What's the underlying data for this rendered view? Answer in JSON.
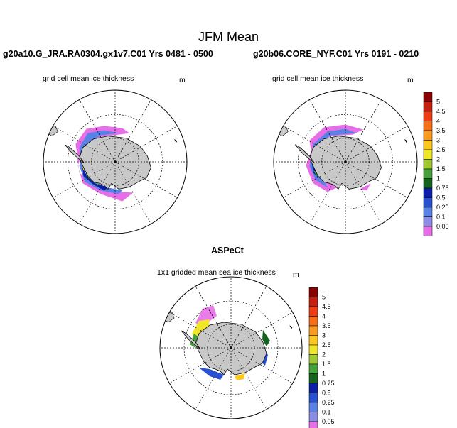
{
  "figure": {
    "title": "JFM Mean"
  },
  "panels": [
    {
      "id": "panel-left",
      "header": "g20a10.G_JRA.RA0304.gx1v7.C01  Yrs 0481 - 0500",
      "subtitle": "grid cell mean ice thickness",
      "unit": "m"
    },
    {
      "id": "panel-right",
      "header": "g20b06.CORE_NYF.C01  Yrs 0191 - 0210",
      "subtitle": "grid cell mean ice thickness",
      "unit": "m"
    },
    {
      "id": "panel-bottom",
      "header": "ASPeCt",
      "subtitle": "1x1 gridded mean sea ice thickness",
      "unit": "m"
    }
  ],
  "colorbar": {
    "labels": [
      "5",
      "4.5",
      "4",
      "3.5",
      "3",
      "2.5",
      "2",
      "1.5",
      "1",
      "0.75",
      "0.5",
      "0.25",
      "0.1",
      "0.05"
    ],
    "colors": [
      "#8b0000",
      "#c81e0f",
      "#f03c14",
      "#f86e14",
      "#fa9b1e",
      "#fcc81e",
      "#f0e628",
      "#a0c832",
      "#46a03c",
      "#14641e",
      "#0a1eaa",
      "#2850d2",
      "#5a82e6",
      "#8c8ce6",
      "#e66ee6"
    ]
  },
  "map_colors": {
    "land": "#c8c8c8",
    "coast": "#000000",
    "grid": "#000000"
  }
}
